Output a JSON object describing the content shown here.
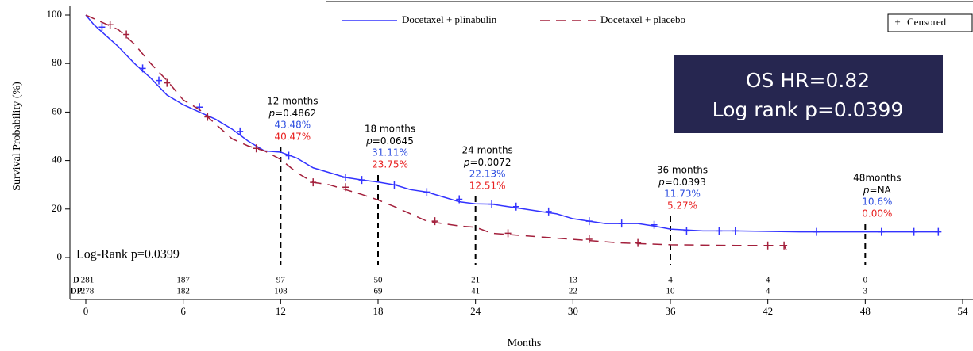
{
  "chart_data": {
    "type": "line",
    "x_label": "Months",
    "y_label": "Survival Probability (%)",
    "xlim": [
      0,
      54
    ],
    "xticks": [
      0,
      6,
      12,
      18,
      24,
      30,
      36,
      42,
      48,
      54
    ],
    "ylim": [
      0,
      100
    ],
    "yticks": [
      0,
      20,
      40,
      60,
      80,
      100
    ],
    "legend": "top",
    "censored_label": "Censored",
    "censored_symbol": "+",
    "series": [
      {
        "name": "Docetaxel + plinabulin",
        "color": "#3333ff",
        "dash": false,
        "x": [
          0,
          0.5,
          1,
          2,
          3,
          4,
          5,
          6,
          7,
          8,
          9,
          10,
          11,
          12,
          13,
          14,
          15,
          16,
          17,
          18,
          19,
          20,
          21,
          22,
          23,
          24,
          25,
          26,
          27,
          28,
          29,
          30,
          31,
          32,
          34,
          35,
          36,
          38,
          40,
          44,
          48,
          52.5
        ],
        "values": [
          100,
          96,
          93,
          87,
          80,
          74,
          67,
          63,
          60,
          57,
          53,
          48,
          44,
          43.48,
          41,
          37,
          35,
          33,
          32,
          31.11,
          30,
          28,
          27,
          25,
          23,
          22.13,
          22,
          21,
          20,
          19,
          18,
          16,
          15,
          14,
          14,
          13,
          11.73,
          11,
          11,
          10.6,
          10.6,
          10.6
        ],
        "censored_x": [
          1,
          3.5,
          4.5,
          7,
          9.5,
          12.5,
          16,
          17,
          19,
          21,
          23,
          25,
          26.5,
          28.5,
          31,
          33,
          35,
          37,
          39,
          40,
          45,
          49,
          51,
          52.5
        ],
        "censored_y": [
          95,
          78,
          73,
          62,
          52,
          42,
          33,
          32,
          30,
          27,
          24,
          22,
          21,
          19,
          15,
          14,
          13.5,
          11,
          11,
          11,
          10.6,
          10.6,
          10.6,
          10.6
        ]
      },
      {
        "name": "Docetaxel + placebo",
        "color": "#a3203c",
        "dash": true,
        "x": [
          0,
          1,
          2,
          3,
          4,
          5,
          6,
          7,
          8,
          9,
          10,
          11,
          12,
          13,
          14,
          15,
          16,
          17,
          18,
          19,
          20,
          21,
          22,
          23,
          24,
          25,
          27,
          29,
          31,
          33,
          36,
          40,
          43,
          43.3
        ],
        "values": [
          100,
          97,
          94,
          88,
          80,
          73,
          65,
          61,
          55,
          49,
          46,
          44,
          40.47,
          35,
          31,
          30,
          28,
          26,
          23.75,
          21,
          18,
          15,
          14,
          13,
          12.51,
          10,
          9,
          8,
          7,
          6,
          5.27,
          5,
          5,
          1
        ],
        "censored_x": [
          1.5,
          2.5,
          5,
          7.5,
          10.5,
          14,
          16,
          21.5,
          26,
          31,
          34,
          42,
          43
        ],
        "censored_y": [
          96,
          92,
          72,
          58,
          45,
          31,
          29,
          15,
          10,
          7.5,
          6,
          5,
          5
        ]
      }
    ],
    "annotations": [
      {
        "x": 12,
        "label": "12 months",
        "p": "=0.4862",
        "blue": "43.48%",
        "red": "40.47%"
      },
      {
        "x": 18,
        "label": "18 months",
        "p": "=0.0645",
        "blue": "31.11%",
        "red": "23.75%"
      },
      {
        "x": 24,
        "label": "24 months",
        "p": "=0.0072",
        "blue": "22.13%",
        "red": "12.51%"
      },
      {
        "x": 36,
        "label": "36 months",
        "p": "=0.0393",
        "blue": "11.73%",
        "red": "5.27%"
      },
      {
        "x": 48,
        "label": "48months",
        "p": "=NA",
        "blue": "10.6%",
        "red": "0.00%"
      }
    ],
    "p_symbol": "p",
    "log_rank_text": "Log-Rank p=0.0399",
    "box_lines": [
      "OS HR=0.82",
      "Log rank p=0.0399"
    ],
    "risk_table": [
      {
        "label": "D",
        "counts": [
          281,
          187,
          97,
          50,
          21,
          13,
          4,
          4,
          0
        ]
      },
      {
        "label": "DP",
        "counts": [
          278,
          182,
          108,
          69,
          41,
          22,
          10,
          4,
          3
        ]
      }
    ]
  }
}
